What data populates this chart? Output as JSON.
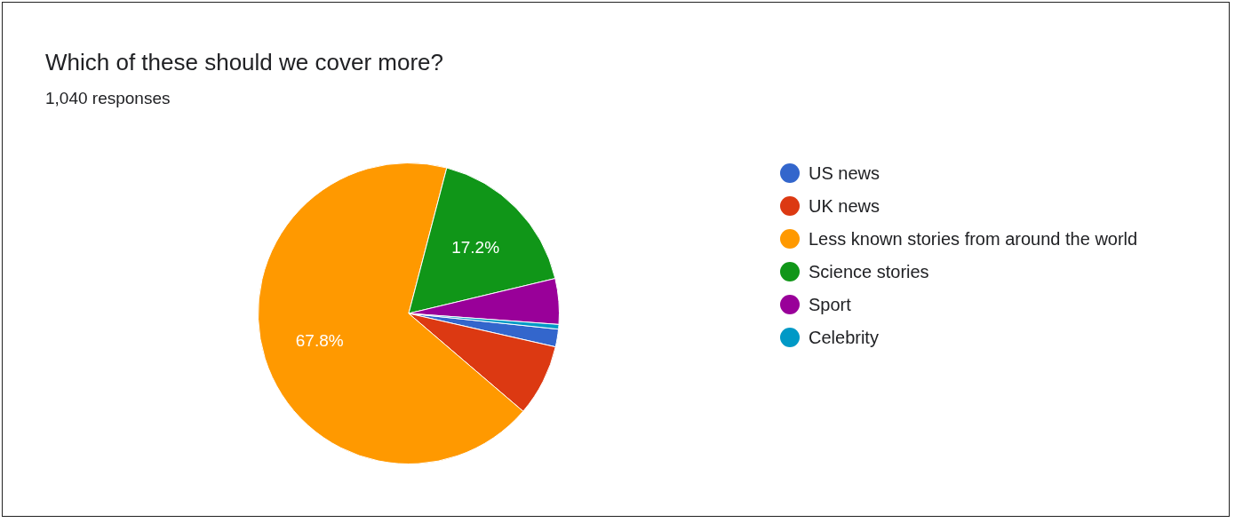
{
  "chart_data": {
    "type": "pie",
    "title": "Which of these should we cover more?",
    "subtitle": "1,040 responses",
    "categories": [
      "US news",
      "UK news",
      "Less known stories from around the world",
      "Science stories",
      "Sport",
      "Celebrity"
    ],
    "values": [
      1.9,
      7.7,
      67.8,
      17.2,
      4.9,
      0.5
    ],
    "colors": [
      "#3366cc",
      "#dc3912",
      "#ff9900",
      "#109618",
      "#990099",
      "#0099c6"
    ],
    "value_labels": [
      null,
      null,
      "67.8%",
      "17.2%",
      null,
      null
    ],
    "legend": "right"
  }
}
